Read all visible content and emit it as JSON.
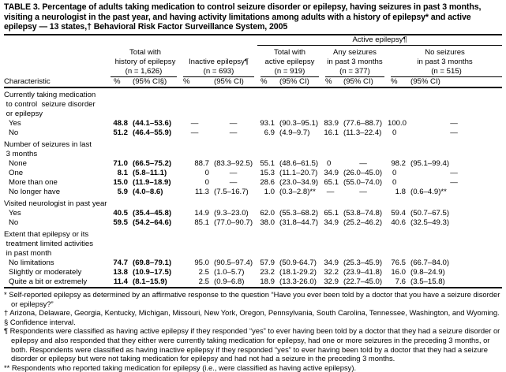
{
  "title": "TABLE 3. Percentage of adults taking medication to control seizure disorder or epilepsy, having seizures in past 3 months, visiting a neurologist in the past year, and having activity limitations among adults with a history of epilepsy* and active epilepsy — 13 states,† Behavioral Risk Factor Surveillance System, 2005",
  "header": {
    "active_group": "Active epilepsy¶",
    "columns": [
      {
        "line1": "Total with",
        "line2": "history of epilepsy",
        "n": "(n = 1,626)",
        "pct": "%",
        "ci": "(95% CI§)"
      },
      {
        "line1": "",
        "line2": "Inactive epilepsy¶",
        "n": "(n = 693)",
        "pct": "%",
        "ci": "(95% CI)"
      },
      {
        "line1": "Total with",
        "line2": "active epilepsy",
        "n": "(n = 919)",
        "pct": "%",
        "ci": "(95% CI)"
      },
      {
        "line1": "Any seizures",
        "line2": "in past 3 months",
        "n": "(n = 377)",
        "pct": "%",
        "ci": "(95% CI)"
      },
      {
        "line1": "No seizures",
        "line2": "in past 3 months",
        "n": "(n = 515)",
        "pct": "%",
        "ci": "(95% CI)"
      }
    ],
    "characteristic": "Characteristic"
  },
  "sections": [
    {
      "label": [
        "Currently taking medication",
        " to control  seizure disorder",
        " or epilepsy"
      ],
      "rows": [
        {
          "label": "Yes",
          "values": [
            "48.8",
            "(44.1–53.6)",
            "—",
            "—",
            "93.1",
            "(90.3–95.1)",
            "83.9",
            "(77.6–88.7)",
            "100.0",
            "—"
          ]
        },
        {
          "label": "No",
          "values": [
            "51.2",
            "(46.4–55.9)",
            "—",
            "—",
            "6.9",
            "(4.9–9.7)",
            "16.1",
            "(11.3–22.4)",
            "0",
            "—"
          ]
        }
      ]
    },
    {
      "label": [
        "Number of seizures in last",
        " 3 months"
      ],
      "rows": [
        {
          "label": "None",
          "values": [
            "71.0",
            "(66.5–75.2)",
            "88.7",
            "(83.3–92.5)",
            "55.1",
            "(48.6–61.5)",
            "0",
            "—",
            "98.2",
            "(95.1–99.4)"
          ]
        },
        {
          "label": "One",
          "values": [
            "8.1",
            "(5.8–11.1)",
            "0",
            "—",
            "15.3",
            "(11.1–20.7)",
            "34.9",
            "(26.0–45.0)",
            "0",
            "—"
          ]
        },
        {
          "label": "More than one",
          "values": [
            "15.0",
            "(11.9–18.9)",
            "0",
            "—",
            "28.6",
            "(23.0–34.9)",
            "65.1",
            "(55.0–74.0)",
            "0",
            "—"
          ]
        },
        {
          "label": "No longer have",
          "values": [
            "5.9",
            "(4.0–8.6)",
            "11.3",
            "(7.5–16.7)",
            "1.0",
            "(0.3–2.8)**",
            "—",
            "—",
            "1.8",
            "(0.6–4.9)**"
          ]
        }
      ]
    },
    {
      "label": [
        "Visited neurologist in past year"
      ],
      "rows": [
        {
          "label": "Yes",
          "values": [
            "40.5",
            "(35.4–45.8)",
            "14.9",
            "(9.3–23.0)",
            "62.0",
            "(55.3–68.2)",
            "65.1",
            "(53.8–74.8)",
            "59.4",
            "(50.7–67.5)"
          ]
        },
        {
          "label": "No",
          "values": [
            "59.5",
            "(54.2–64.6)",
            "85.1",
            "(77.0–90.7)",
            "38.0",
            "(31.8–44.7)",
            "34.9",
            "(25.2–46.2)",
            "40.6",
            "(32.5–49.3)"
          ]
        }
      ]
    },
    {
      "label": [
        "Extent that epilepsy or its",
        " treatment limited activities",
        " in past month"
      ],
      "rows": [
        {
          "label": "No limitations",
          "values": [
            "74.7",
            "(69.8–79.1)",
            "95.0",
            "(90.5–97.4)",
            "57.9",
            "(50.9-64.7)",
            "34.9",
            "(25.3–45.9)",
            "76.5",
            "(66.7–84.0)"
          ]
        },
        {
          "label": "Slightly or moderately",
          "values": [
            "13.8",
            "(10.9–17.5)",
            "2.5",
            "(1.0–5.7)",
            "23.2",
            "(18.1-29.2)",
            "32.2",
            "(23.9–41.8)",
            "16.0",
            "(9.8–24.9)"
          ]
        },
        {
          "label": "Quite a bit or extremely",
          "values": [
            "11.4",
            "(8.1–15.9)",
            "2.5",
            "(0.9–6.8)",
            "18.9",
            "(13.3-26.0)",
            "32.9",
            "(22.7–45.0)",
            "7.6",
            "(3.5–15.8)"
          ]
        }
      ]
    }
  ],
  "footnotes": [
    "* Self-reported epilepsy as determined by an affirmative response to the question “Have you ever been told by a doctor that you have a seizure disorder or epilepsy?”",
    "† Arizona, Delaware, Georgia, Kentucky, Michigan, Missouri, New York, Oregon, Pennsylvania, South Carolina, Tennessee, Washington, and Wyoming.",
    "§ Confidence interval.",
    "¶ Respondents were classified as having active epilepsy if they responded “yes” to ever having been told by a doctor that they had a seizure disorder or epilepsy and also responded that they either were currently taking medication for epilepsy, had one or more seizures in the preceding 3 months, or both. Respondents were classified as having inactive epilepsy if they responded “yes” to ever having been told by a doctor that they had a seizure disorder or epilepsy but were not taking medication for epilepsy and had not had a seizure in the preceding 3 months.",
    "** Respondents who reported taking medication for epilepsy (i.e., were classified as having active epilepsy)."
  ]
}
